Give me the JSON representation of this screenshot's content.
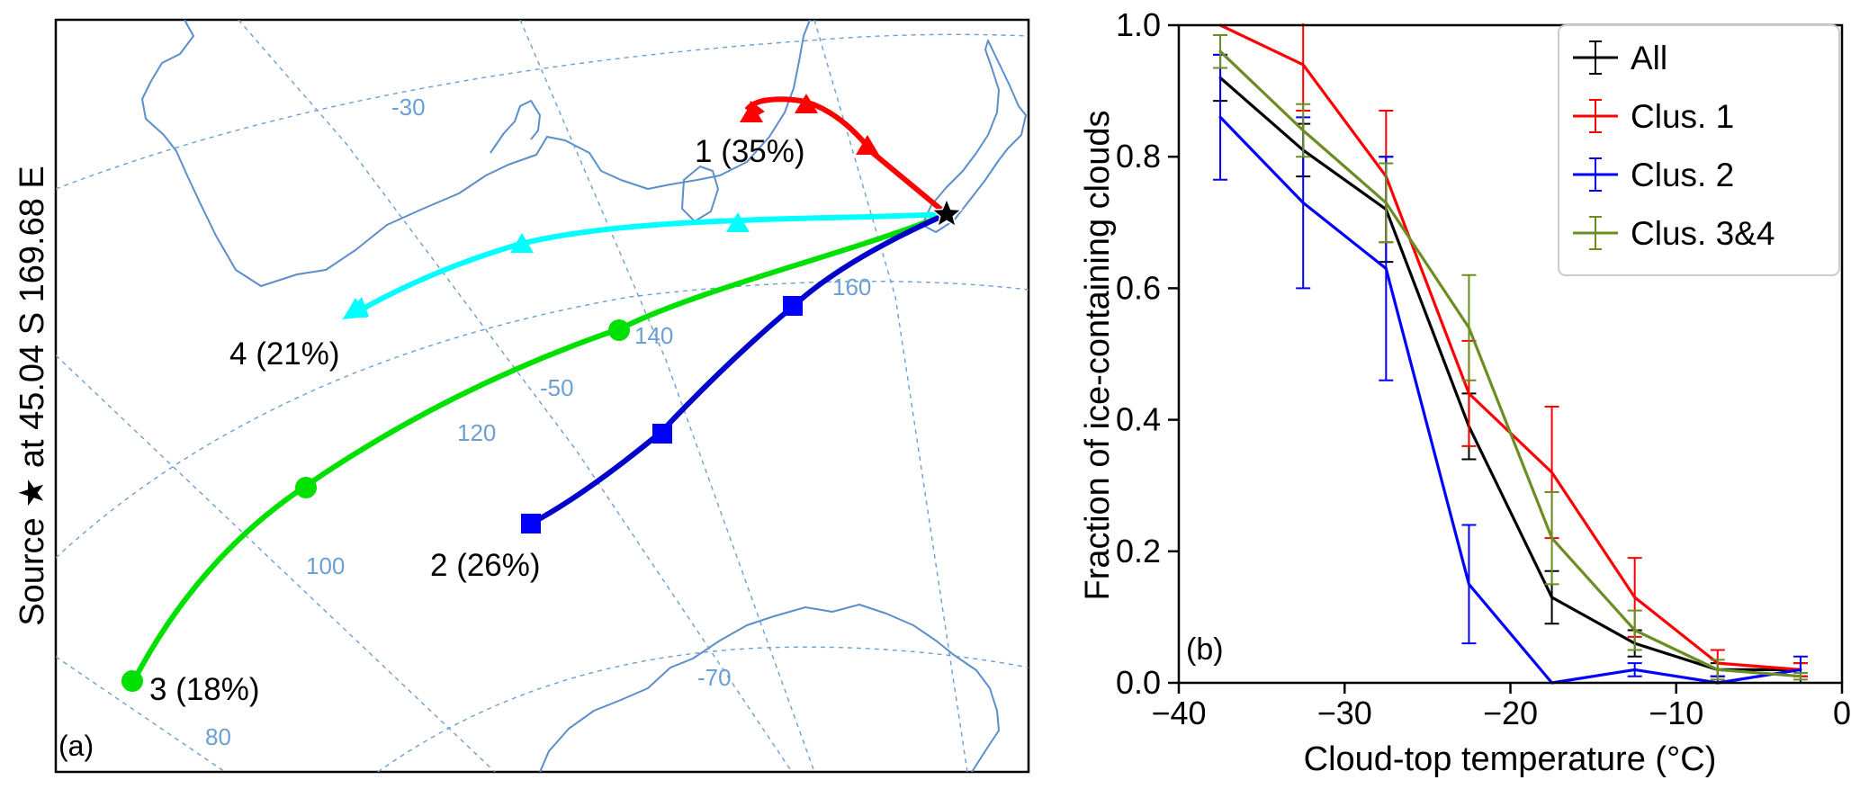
{
  "panel_a": {
    "side_label": "Source ★ at  45.04 S  169.68 E",
    "panel_label": "(a)",
    "colors": {
      "coast": "#5b8fc9",
      "grid": "#6c9fd4",
      "grid_label": "#6c9fd4"
    },
    "grid_labels": [
      "-30",
      "-50",
      "-70",
      "80",
      "100",
      "120",
      "140",
      "160"
    ],
    "source": {
      "lat": -45.04,
      "lon": 169.68,
      "marker": "star-icon",
      "color": "#000000"
    },
    "trajectories": [
      {
        "label": "1 (35%)",
        "cluster": 1,
        "color": "#ff0000",
        "marker": "triangle"
      },
      {
        "label": "2 (26%)",
        "cluster": 2,
        "color": "#0000cc",
        "marker": "square"
      },
      {
        "label": "3 (18%)",
        "cluster": 3,
        "color": "#00e000",
        "marker": "circle"
      },
      {
        "label": "4 (21%)",
        "cluster": 4,
        "color": "#00ffff",
        "marker": "triangle"
      }
    ]
  },
  "chart_data": {
    "type": "line",
    "panel_label": "(b)",
    "xlabel": "Cloud-top temperature (°C)",
    "ylabel": "Fraction of ice-containing clouds",
    "xlim": [
      -40,
      0
    ],
    "ylim": [
      0,
      1.0
    ],
    "xticks": [
      -40,
      -30,
      -20,
      -10,
      0
    ],
    "xtick_labels": [
      "−40",
      "−30",
      "−20",
      "−10",
      "0"
    ],
    "yticks": [
      0,
      0.2,
      0.4,
      0.6,
      0.8,
      1.0
    ],
    "ytick_labels": [
      "0.0",
      "0.2",
      "0.4",
      "0.6",
      "0.8",
      "1.0"
    ],
    "legend_position": "top-right",
    "grid": false,
    "x": [
      -37.5,
      -32.5,
      -27.5,
      -22.5,
      -17.5,
      -12.5,
      -7.5,
      -2.5
    ],
    "series": [
      {
        "name": "All",
        "color": "#000000",
        "values": [
          0.92,
          0.81,
          0.72,
          0.39,
          0.13,
          0.06,
          0.02,
          0.02
        ],
        "errors": [
          0.035,
          0.04,
          0.08,
          0.05,
          0.04,
          0.02,
          0.01,
          0.01
        ]
      },
      {
        "name": "Clus. 1",
        "color": "#ff0000",
        "values": [
          1.0,
          0.94,
          0.77,
          0.44,
          0.32,
          0.13,
          0.03,
          0.02
        ],
        "errors": [
          0.0,
          0.07,
          0.1,
          0.08,
          0.1,
          0.06,
          0.02,
          0.01
        ]
      },
      {
        "name": "Clus. 2",
        "color": "#0000ff",
        "values": [
          0.86,
          0.73,
          0.63,
          0.15,
          0.0,
          0.02,
          0.0,
          0.02
        ],
        "errors": [
          0.095,
          0.13,
          0.17,
          0.09,
          0.0,
          0.01,
          0.01,
          0.02
        ]
      },
      {
        "name": "Clus. 3&4",
        "color": "#6b8e23",
        "values": [
          0.96,
          0.84,
          0.73,
          0.54,
          0.22,
          0.08,
          0.02,
          0.01
        ],
        "errors": [
          0.025,
          0.04,
          0.06,
          0.08,
          0.07,
          0.03,
          0.015,
          0.005
        ]
      }
    ]
  }
}
